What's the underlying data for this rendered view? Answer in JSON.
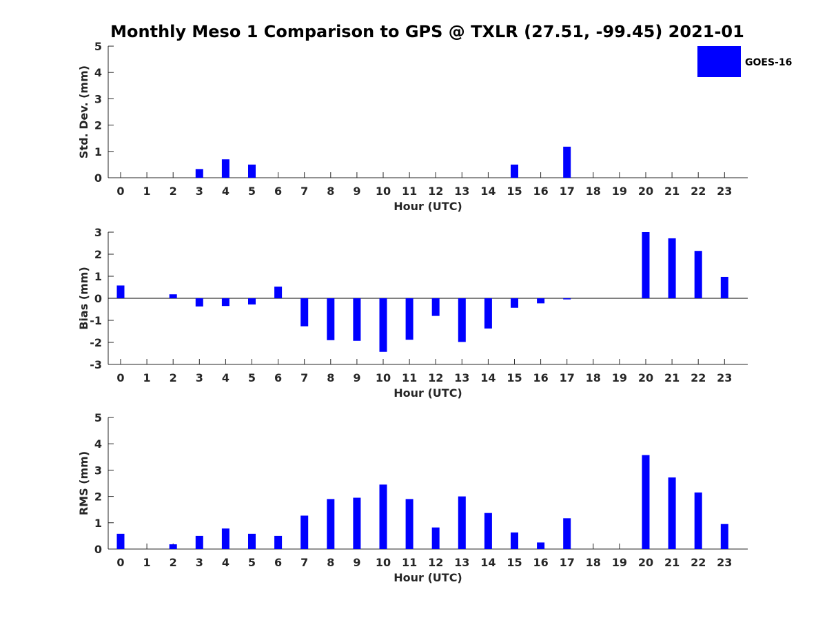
{
  "title": "Monthly Meso 1 Comparison to GPS @ TXLR (27.51, -99.45) 2021-01",
  "legend": {
    "label": "GOES-16",
    "color": "#0000ff",
    "placement": "top-right"
  },
  "chart_data": [
    {
      "type": "bar",
      "xlabel": "Hour (UTC)",
      "ylabel": "Std. Dev. (mm)",
      "ylim": [
        0,
        5
      ],
      "yticks": [
        0,
        1,
        2,
        3,
        4,
        5
      ],
      "categories": [
        "0",
        "1",
        "2",
        "3",
        "4",
        "5",
        "6",
        "7",
        "8",
        "9",
        "10",
        "11",
        "12",
        "13",
        "14",
        "15",
        "16",
        "17",
        "18",
        "19",
        "20",
        "21",
        "22",
        "23"
      ],
      "series": [
        {
          "name": "GOES-16",
          "values": [
            0,
            0,
            0,
            0.33,
            0.7,
            0.5,
            0,
            0,
            0,
            0,
            0,
            0,
            0,
            0,
            0,
            0.5,
            0,
            1.18,
            0,
            0,
            0,
            0,
            0,
            0
          ]
        }
      ]
    },
    {
      "type": "bar",
      "xlabel": "Hour (UTC)",
      "ylabel": "Bias (mm)",
      "ylim": [
        -3,
        3
      ],
      "yticks": [
        -3,
        -2,
        -1,
        0,
        1,
        2,
        3
      ],
      "categories": [
        "0",
        "1",
        "2",
        "3",
        "4",
        "5",
        "6",
        "7",
        "8",
        "9",
        "10",
        "11",
        "12",
        "13",
        "14",
        "15",
        "16",
        "17",
        "18",
        "19",
        "20",
        "21",
        "22",
        "23"
      ],
      "series": [
        {
          "name": "GOES-16",
          "values": [
            0.58,
            0,
            0.18,
            -0.37,
            -0.35,
            -0.28,
            0.53,
            -1.27,
            -1.9,
            -1.93,
            -2.43,
            -1.88,
            -0.8,
            -1.98,
            -1.37,
            -0.43,
            -0.23,
            -0.05,
            0,
            0,
            3.0,
            2.72,
            2.15,
            0.97
          ]
        }
      ]
    },
    {
      "type": "bar",
      "xlabel": "Hour (UTC)",
      "ylabel": "RMS (mm)",
      "ylim": [
        0,
        5
      ],
      "yticks": [
        0,
        1,
        2,
        3,
        4,
        5
      ],
      "categories": [
        "0",
        "1",
        "2",
        "3",
        "4",
        "5",
        "6",
        "7",
        "8",
        "9",
        "10",
        "11",
        "12",
        "13",
        "14",
        "15",
        "16",
        "17",
        "18",
        "19",
        "20",
        "21",
        "22",
        "23"
      ],
      "series": [
        {
          "name": "GOES-16",
          "values": [
            0.58,
            0,
            0.18,
            0.5,
            0.78,
            0.58,
            0.5,
            1.27,
            1.9,
            1.95,
            2.45,
            1.9,
            0.82,
            2.0,
            1.37,
            0.63,
            0.25,
            1.17,
            0,
            0,
            3.57,
            2.72,
            2.15,
            0.95
          ]
        }
      ]
    }
  ]
}
